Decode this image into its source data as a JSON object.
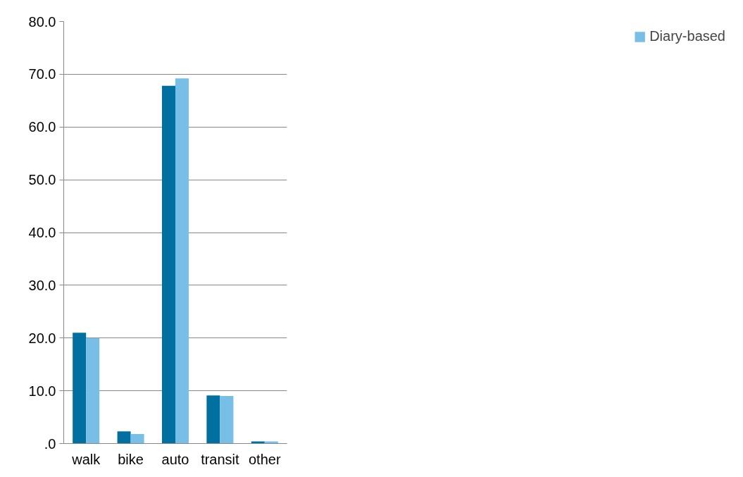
{
  "chart_data": {
    "type": "bar",
    "categories": [
      "walk",
      "bike",
      "auto",
      "transit",
      "other"
    ],
    "series": [
      {
        "color": "#0070a0",
        "values": [
          21.0,
          2.3,
          67.8,
          9.1,
          0.4
        ]
      },
      {
        "name": "Diary-based",
        "color": "#78bfe8",
        "values": [
          20.0,
          1.8,
          69.2,
          9.0,
          0.4
        ]
      }
    ],
    "ylim": [
      0,
      80
    ],
    "yticks": [
      {
        "value": 0,
        "label": ".0"
      },
      {
        "value": 10,
        "label": "10.0"
      },
      {
        "value": 20,
        "label": "20.0"
      },
      {
        "value": 30,
        "label": "30.0"
      },
      {
        "value": 40,
        "label": "40.0"
      },
      {
        "value": 50,
        "label": "50.0"
      },
      {
        "value": 60,
        "label": "60.0"
      },
      {
        "value": 70,
        "label": "70.0"
      },
      {
        "value": 80,
        "label": "80.0"
      }
    ],
    "grid": "y",
    "legend": "right"
  }
}
